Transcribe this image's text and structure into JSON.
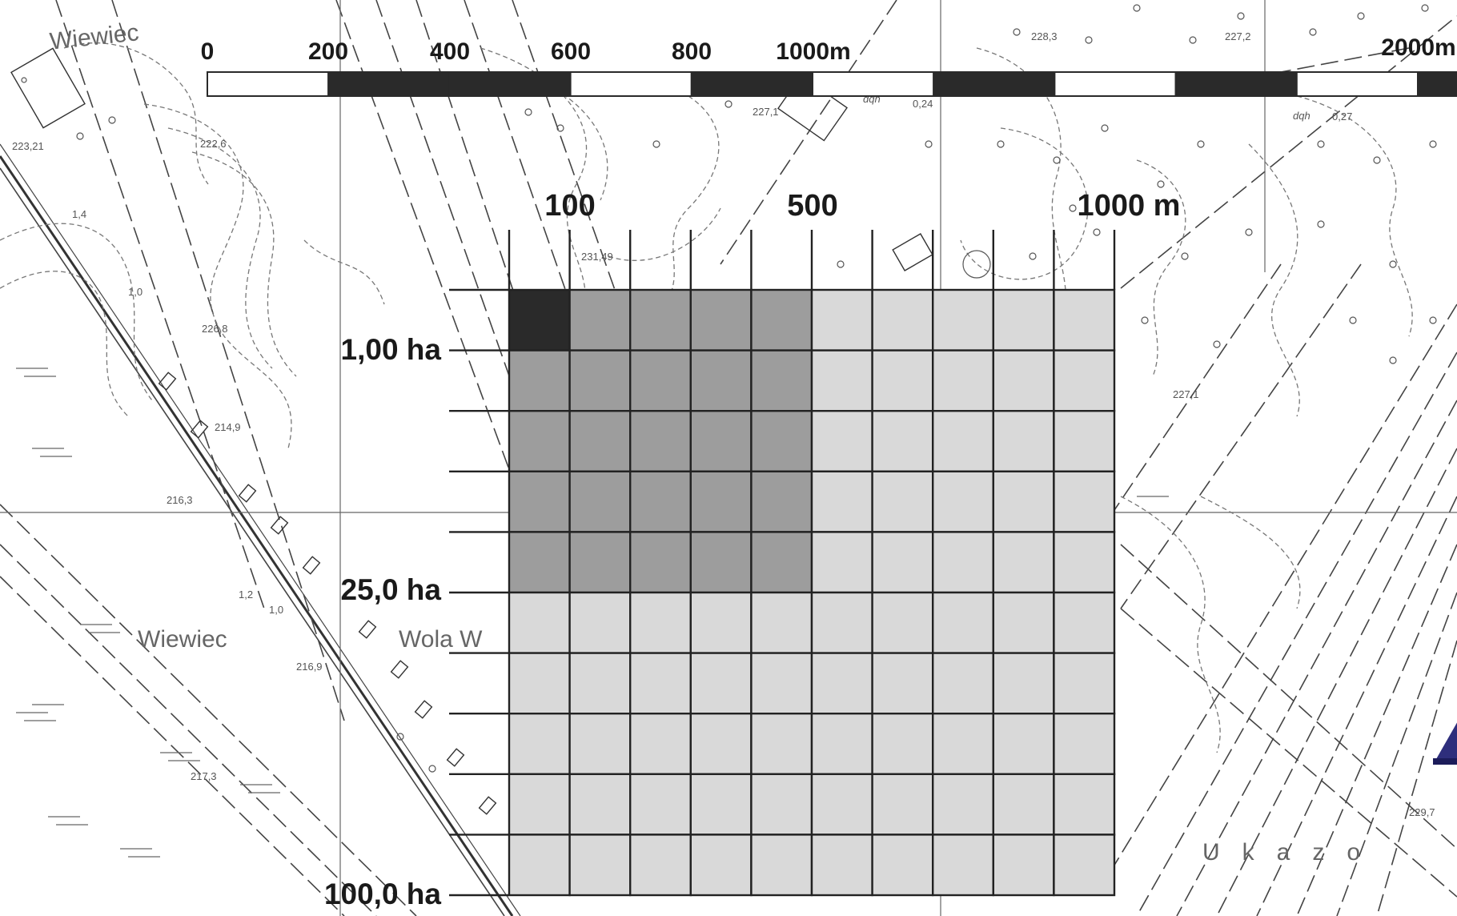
{
  "map_labels": {
    "wiewiec_top": "Wiewiec",
    "wiewiec_mid": "Wiewiec",
    "wola": "Wola W",
    "ukazo": "Ukazo",
    "e223_21": "223,21",
    "e222_6": "222,6",
    "e226_8": "226,8",
    "e214_9": "214,9",
    "e216_3": "216,3",
    "e216_9": "216,9",
    "e217_3": "217,3",
    "e231_49": "231,49",
    "e228_3": "228,3",
    "e227_2": "227,2",
    "e227_1a": "227,1",
    "e227_1b": "227,1",
    "e229_7": "229,7",
    "v1_4": "1,4",
    "v1_0a": "1,0",
    "v1_0b": "1,0",
    "v1_2": "1,2",
    "v0_24": "0,24",
    "v0_27": "0,27",
    "dqh1": "dqh",
    "dqh2": "dqh"
  },
  "scale_bar": {
    "labels": [
      "0",
      "200",
      "400",
      "600",
      "800",
      "1000m",
      "2000m"
    ],
    "segment_colors": [
      "white",
      "black",
      "black",
      "white",
      "black",
      "white",
      "black",
      "white",
      "black",
      "white",
      "black",
      "white",
      "black"
    ]
  },
  "grid_legend": {
    "top_labels": [
      "100",
      "500",
      "1000 m"
    ],
    "left_labels": [
      "1,00 ha",
      "25,0 ha",
      "100,0 ha"
    ],
    "cell_area_counts": {
      "dark": 1,
      "medium_side": 5,
      "light_side": 10
    },
    "colors": {
      "dark": "#2a2a2a",
      "medium": "#9d9d9d",
      "light": "#d9d9d9",
      "line": "#222222"
    }
  },
  "marker": {
    "color": "#2e2e7c",
    "icon": "triangle-marker-icon"
  }
}
